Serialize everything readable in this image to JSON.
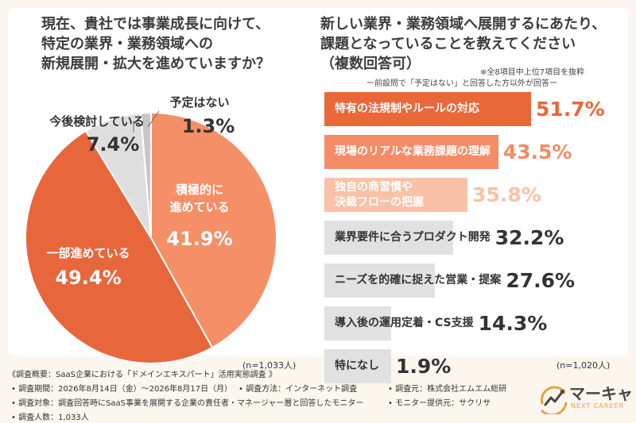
{
  "colors": {
    "bar_top": "#e8683a",
    "bar_second": "#f48c67",
    "bar_third": "#f9c1a6",
    "bar_rest": "#e1e1e1",
    "pie_positive": "#f58f67",
    "pie_partial": "#e8663c",
    "pie_considering": "#dedede",
    "pie_none": "#c7c7c7",
    "brand": "#e8a23a"
  },
  "left_question": [
    "現在、貴社では事業成長に向けて、",
    "特定の業界・業務領域への",
    "新規展開・拡大を進めていますか？"
  ],
  "right_question": [
    "新しい業界・業務領域へ展開するにあたり、",
    "課題となっていることを教えてください",
    "（複数回答可）"
  ],
  "right_notes": {
    "top": "※全8項目中上位7項目を抜粋",
    "filter": "ー前設問で「予定はない」と回答した方以外が回答ー"
  },
  "n_left": "(n=1,033人)",
  "n_right": "(n=1,020人)",
  "chart_data": [
    {
      "type": "pie",
      "slices": [
        {
          "label_lines": [
            "積極的に",
            "進めている"
          ],
          "value": 41.9,
          "display": "41.9%"
        },
        {
          "label_lines": [
            "一部進めている"
          ],
          "value": 49.4,
          "display": "49.4%"
        },
        {
          "label_lines": [
            "今後検討している"
          ],
          "value": 7.4,
          "display": "7.4%"
        },
        {
          "label_lines": [
            "予定はない"
          ],
          "value": 1.3,
          "display": "1.3%"
        }
      ]
    },
    {
      "type": "bar",
      "orientation": "horizontal",
      "items": [
        {
          "label_lines": [
            "特有の法規制やルールの対応"
          ],
          "value": 51.7,
          "display": "51.7%"
        },
        {
          "label_lines": [
            "現場のリアルな業務課題の理解"
          ],
          "value": 43.5,
          "display": "43.5%"
        },
        {
          "label_lines": [
            "独自の商習慣や",
            "決裁フローの把握"
          ],
          "value": 35.8,
          "display": "35.8%"
        },
        {
          "label_lines": [
            "業界要件に合うプロダクト開発"
          ],
          "value": 32.2,
          "display": "32.2%"
        },
        {
          "label_lines": [
            "ニーズを的確に捉えた営業・提案"
          ],
          "value": 27.6,
          "display": "27.6%"
        },
        {
          "label_lines": [
            "導入後の運用定着・CS支援"
          ],
          "value": 14.3,
          "display": "14.3%"
        },
        {
          "label_lines": [
            "特になし"
          ],
          "value": 1.9,
          "display": "1.9%"
        }
      ]
    }
  ],
  "footer": {
    "title": "《調査概要：SaaS企業における「ドメインエキスパート」活用実態調査 》",
    "period": "• 調査期間：2026年8月14日（金）〜2026年8月17日（月）",
    "method": "• 調査方法：インターネット調査",
    "org": "• 調査元：株式会社エムエム総研",
    "target": "• 調査対象：調査回答時にSaaS事業を展開する企業の責任者・マネージャー層と回答したモニター",
    "provider": "• モニター提供元：サクリサ",
    "count": "• 調査人数：1,033人"
  },
  "brand": {
    "name": "マーキャリ",
    "sub": "NEXT CAREER"
  }
}
